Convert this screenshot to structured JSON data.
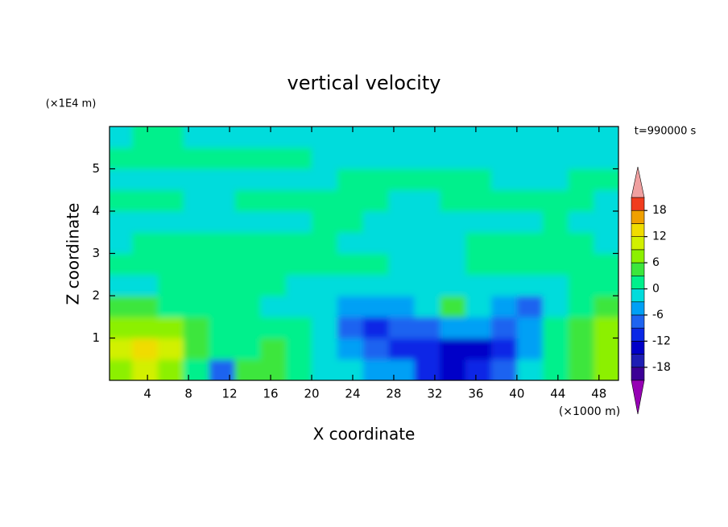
{
  "chart_data": {
    "type": "contour",
    "title": "vertical velocity",
    "x_label": "X coordinate",
    "y_label": "Z coordinate",
    "x_unit": "(×1000 m)",
    "y_unit": "(×1E4 m)",
    "time_label": "t=990000 s",
    "xlim": [
      0.3,
      49.9
    ],
    "ylim": [
      0,
      6
    ],
    "xticks": [
      4,
      8,
      12,
      16,
      20,
      24,
      28,
      32,
      36,
      40,
      44,
      48
    ],
    "yticks": [
      1,
      2,
      3,
      4,
      5
    ],
    "x": [
      1.25,
      3.75,
      6.25,
      8.75,
      11.25,
      13.75,
      16.25,
      18.75,
      21.25,
      23.75,
      26.25,
      28.75,
      31.25,
      33.75,
      36.25,
      38.75,
      41.25,
      43.75,
      46.25,
      48.75
    ],
    "z": [
      0.25,
      0.75,
      1.25,
      1.75,
      2.25,
      2.75,
      3.25,
      3.75,
      4.25,
      4.75,
      5.25,
      5.75
    ],
    "values": [
      [
        8,
        9,
        6,
        2,
        -7,
        4,
        5,
        2,
        -1,
        -3,
        -5,
        -6,
        -10,
        -13,
        -12,
        -8,
        -3,
        1,
        3,
        6
      ],
      [
        10,
        13,
        9,
        4,
        1,
        2,
        3,
        2,
        -2,
        -6,
        -9,
        -11,
        -12,
        -14,
        -13,
        -11,
        -5,
        1,
        4,
        8
      ],
      [
        7,
        8,
        6,
        4,
        1,
        1,
        2,
        1,
        -1,
        -8,
        -10,
        -9,
        -8,
        -5,
        -6,
        -9,
        -4,
        1,
        5,
        7
      ],
      [
        4,
        4,
        2,
        1,
        1,
        1,
        -1,
        -1,
        -2,
        -4,
        -5,
        -4,
        -3,
        5,
        -2,
        -4,
        -7,
        -2,
        1,
        4
      ],
      [
        -1,
        -1,
        1,
        1,
        1,
        1,
        1,
        -1,
        -1,
        -1,
        -1,
        -1,
        -1,
        -1,
        -1,
        -1,
        -1,
        -1,
        1,
        1
      ],
      [
        1,
        1,
        1,
        1,
        1,
        1,
        1,
        1,
        1,
        1,
        1,
        -1,
        -1,
        -1,
        1,
        1,
        1,
        1,
        1,
        1
      ],
      [
        -1,
        1,
        1,
        1,
        1,
        1,
        1,
        1,
        1,
        -1,
        -1,
        -1,
        -1,
        -1,
        1,
        1,
        1,
        1,
        1,
        -1
      ],
      [
        -1,
        -1,
        -1,
        -1,
        -1,
        -1,
        -1,
        -1,
        1,
        1,
        -1,
        -1,
        -1,
        -1,
        -1,
        -1,
        -1,
        1,
        -1,
        -1
      ],
      [
        1,
        1,
        1,
        -1,
        -1,
        1,
        1,
        1,
        1,
        1,
        1,
        -1,
        -1,
        1,
        1,
        1,
        1,
        1,
        1,
        -1
      ],
      [
        -1,
        -1,
        -1,
        -1,
        -1,
        -1,
        -1,
        -1,
        -1,
        1,
        1,
        1,
        1,
        1,
        1,
        -1,
        -1,
        -1,
        1,
        1
      ],
      [
        1,
        1,
        1,
        1,
        1,
        1,
        1,
        1,
        -1,
        -1,
        -1,
        -1,
        -1,
        -1,
        -1,
        -1,
        -1,
        -1,
        -1,
        -1
      ],
      [
        -1,
        1,
        1,
        -1,
        -1,
        -1,
        -1,
        -1,
        -1,
        -1,
        -1,
        -1,
        -1,
        -1,
        -1,
        -1,
        -1,
        -1,
        -1,
        -1
      ]
    ],
    "levels": [
      -21,
      -18,
      -15,
      -12,
      -9,
      -6,
      -3,
      0,
      3,
      6,
      9,
      12,
      15,
      18,
      21
    ],
    "colors": [
      "#3c0096",
      "#1e1eb4",
      "#0000c8",
      "#0a28e6",
      "#1e64f0",
      "#00a0f5",
      "#00dcdc",
      "#00f08c",
      "#3ce63c",
      "#8cf000",
      "#d2f000",
      "#f0dc00",
      "#f0a000",
      "#f03c1e"
    ],
    "under_color": "#9600b4",
    "over_color": "#f0a0a0",
    "colorbar_ticks": [
      -18,
      -12,
      -6,
      0,
      6,
      12,
      18
    ]
  }
}
